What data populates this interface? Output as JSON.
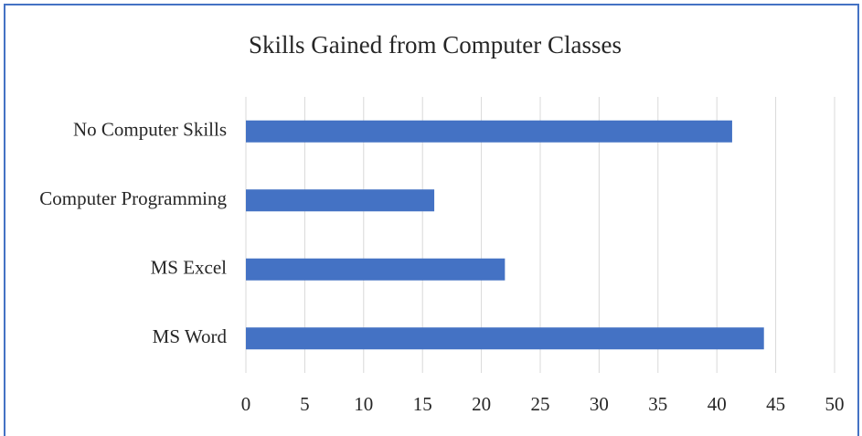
{
  "chart_data": {
    "type": "bar",
    "orientation": "horizontal",
    "title": "Skills Gained from Computer Classes",
    "categories": [
      "No Computer Skills",
      "Computer Programming",
      "MS Excel",
      "MS Word"
    ],
    "values": [
      41.3,
      16,
      22,
      44
    ],
    "color": "#4472c4",
    "xlim": [
      0,
      50
    ],
    "xticks": [
      0,
      5,
      10,
      15,
      20,
      25,
      30,
      35,
      40,
      45,
      50
    ],
    "grid": true
  }
}
